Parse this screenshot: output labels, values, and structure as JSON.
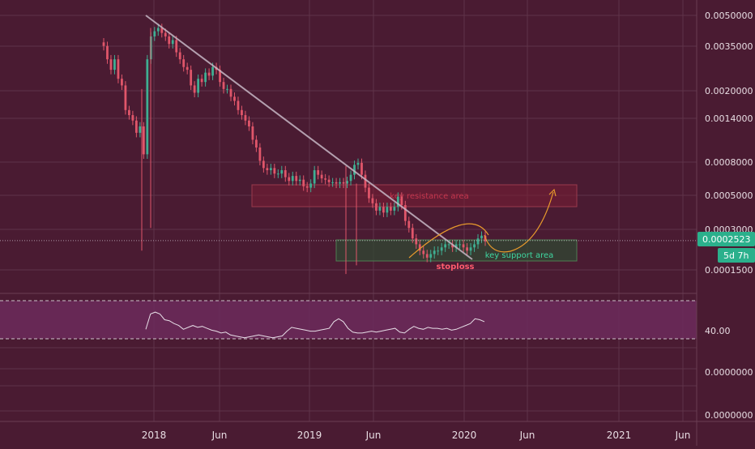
{
  "colors": {
    "background": "#4a1b32",
    "grid": "#5f3349",
    "axis_line": "#6a3e53",
    "axis_text": "#e8dde3",
    "up": "#3fae92",
    "down": "#e0566a",
    "trendline": "#c7b7c6",
    "resistance_fill": "#7a1e34",
    "resistance_stroke": "#9a3a4c",
    "resistance_text": "#c4364d",
    "support_fill": "#2e4a32",
    "support_stroke": "#4f7d53",
    "support_text": "#3fd6a0",
    "stoploss_text": "#ff5b6e",
    "projection": "#e89a2c",
    "price_badge": "#2bb08c",
    "rsi_band": "#6c2a5c",
    "rsi_line": "#e6dde6",
    "rsi_bound": "#cfc3cc"
  },
  "chart_data": [
    {
      "type": "candlestick",
      "scale": "log",
      "ylim": [
        0.00013,
        0.0055
      ],
      "x_ticks": [
        "2018",
        "Jun",
        "2019",
        "Jun",
        "2020",
        "Jun",
        "2021",
        "Jun"
      ],
      "y_ticks": [
        "0.0050000",
        "0.0035000",
        "0.0020000",
        "0.0014000",
        "0.0008000",
        "0.0005000",
        "0.0003000",
        "0.0001500"
      ],
      "y_tick_values": [
        0.005,
        0.0035,
        0.002,
        0.0014,
        0.0008,
        0.0005,
        0.0003,
        0.00015
      ],
      "current_price": "0.0002523",
      "current_price_value": 0.0002523,
      "countdown": "5d 7h",
      "weekly_closes": [
        0.0036,
        0.003,
        0.0026,
        0.003,
        0.0023,
        0.0021,
        0.0015,
        0.0014,
        0.0013,
        0.0011,
        0.0012,
        0.00082,
        0.003,
        0.0041,
        0.0044,
        0.0046,
        0.0043,
        0.0041,
        0.0037,
        0.0039,
        0.0033,
        0.003,
        0.0027,
        0.0026,
        0.0021,
        0.0019,
        0.0023,
        0.0022,
        0.0025,
        0.0024,
        0.0027,
        0.0026,
        0.0022,
        0.002,
        0.002,
        0.0018,
        0.0017,
        0.0015,
        0.0014,
        0.0013,
        0.0012,
        0.001,
        0.0009,
        0.00075,
        0.00068,
        0.00066,
        0.00068,
        0.00063,
        0.00063,
        0.00066,
        0.0006,
        0.00057,
        0.00061,
        0.00057,
        0.00058,
        0.00053,
        0.00052,
        0.00055,
        0.00066,
        0.00062,
        0.00059,
        0.00058,
        0.00056,
        0.00056,
        0.00055,
        0.00056,
        0.00055,
        0.00057,
        0.00062,
        0.00071,
        0.00073,
        0.00062,
        0.00052,
        0.00045,
        0.00042,
        0.00038,
        0.0004,
        0.00037,
        0.0004,
        0.00038,
        0.0004,
        0.00046,
        0.00041,
        0.00033,
        0.0003,
        0.00026,
        0.00024,
        0.00022,
        0.00021,
        0.0002,
        0.00021,
        0.00022,
        0.00022,
        0.00023,
        0.00024,
        0.00024,
        0.00023,
        0.00024,
        0.00024,
        0.00023,
        0.00022,
        0.00023,
        0.00024,
        0.00026,
        0.00027,
        0.00025
      ]
    },
    {
      "type": "line",
      "name": "rsi",
      "ylim": [
        0,
        100
      ],
      "y_ticks": [
        "40.00",
        "0.0000000",
        "0.0000000"
      ],
      "band": [
        30,
        70
      ],
      "values": [
        40,
        56,
        58,
        56,
        50,
        49,
        46,
        44,
        40,
        42,
        44,
        42,
        43,
        41,
        39,
        38,
        36,
        37,
        34,
        33,
        32,
        31,
        32,
        33,
        34,
        33,
        32,
        31,
        32,
        33,
        38,
        42,
        41,
        40,
        39,
        38,
        38,
        39,
        40,
        41,
        48,
        51,
        48,
        41,
        37,
        36,
        36,
        37,
        38,
        37,
        38,
        39,
        40,
        41,
        37,
        36,
        40,
        43,
        41,
        40,
        42,
        41,
        41,
        40,
        41,
        39,
        40,
        42,
        44,
        46,
        51,
        50,
        48
      ]
    }
  ],
  "annotations": {
    "resistance": "key resistance area",
    "support": "key support area",
    "stoploss": "stoploss"
  }
}
